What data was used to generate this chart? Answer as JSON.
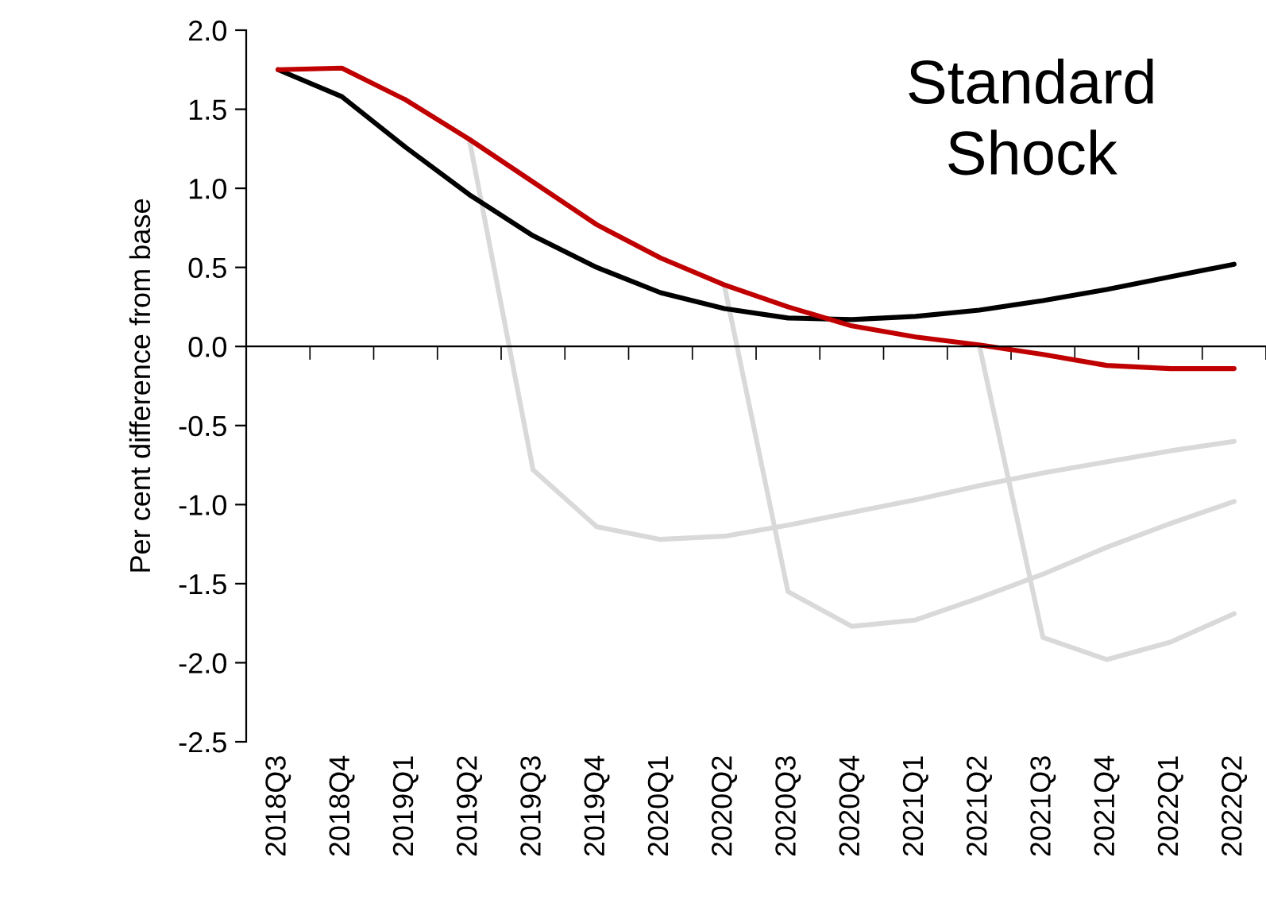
{
  "chart_data": {
    "type": "line",
    "title": "Standard\nShock",
    "ylabel": "Per cent difference from base",
    "categories": [
      "2018Q3",
      "2018Q4",
      "2019Q1",
      "2019Q2",
      "2019Q3",
      "2019Q4",
      "2020Q1",
      "2020Q2",
      "2020Q3",
      "2020Q4",
      "2021Q1",
      "2021Q2",
      "2021Q3",
      "2021Q4",
      "2022Q1",
      "2022Q2"
    ],
    "series": [
      {
        "color": "#d9d9d9",
        "values": [
          null,
          null,
          null,
          1.31,
          -0.78,
          -1.14,
          -1.22,
          -1.2,
          -1.13,
          -1.05,
          -0.97,
          -0.88,
          -0.8,
          -0.73,
          -0.66,
          -0.6
        ]
      },
      {
        "color": "#d9d9d9",
        "values": [
          null,
          null,
          null,
          null,
          null,
          null,
          null,
          0.39,
          -1.55,
          -1.77,
          -1.73,
          -1.59,
          -1.44,
          -1.27,
          -1.12,
          -0.98
        ]
      },
      {
        "color": "#d9d9d9",
        "values": [
          null,
          null,
          null,
          null,
          null,
          null,
          null,
          null,
          null,
          null,
          null,
          0.01,
          -1.84,
          -1.98,
          -1.87,
          -1.69
        ]
      },
      {
        "color": "#000000",
        "values": [
          1.75,
          1.58,
          1.26,
          0.96,
          0.7,
          0.5,
          0.34,
          0.24,
          0.18,
          0.17,
          0.19,
          0.23,
          0.29,
          0.36,
          0.44,
          0.52
        ]
      },
      {
        "color": "#c00000",
        "values": [
          1.75,
          1.76,
          1.56,
          1.31,
          1.04,
          0.77,
          0.56,
          0.39,
          0.25,
          0.13,
          0.06,
          0.01,
          -0.05,
          -0.12,
          -0.14,
          -0.14
        ]
      }
    ],
    "ylim": [
      -2.5,
      2.0
    ],
    "yticks": [
      {
        "value": -2.5,
        "label": "-2.5"
      },
      {
        "value": -2.0,
        "label": "-2.0"
      },
      {
        "value": -1.5,
        "label": "-1.5"
      },
      {
        "value": -1.0,
        "label": "-1.0"
      },
      {
        "value": -0.5,
        "label": "-0.5"
      },
      {
        "value": 0.0,
        "label": "0.0"
      },
      {
        "value": 0.5,
        "label": "0.5"
      },
      {
        "value": 1.0,
        "label": "1.0"
      },
      {
        "value": 1.5,
        "label": "1.5"
      },
      {
        "value": 2.0,
        "label": "2.0"
      }
    ],
    "legend": false
  }
}
